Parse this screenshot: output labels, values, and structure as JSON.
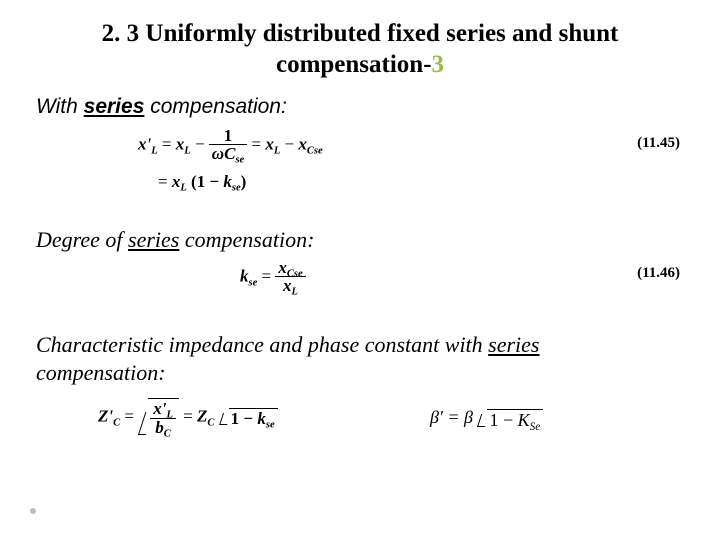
{
  "title": {
    "prefix": "2. 3 Uniformly distributed fixed series and shunt compensation-",
    "accent": "3"
  },
  "intro": {
    "prefix": "With ",
    "emph": "series",
    "space": " ",
    "suffix": "compensation:"
  },
  "eq1145": {
    "xLp": "x'",
    "Lsub": "L",
    "eq1": " = ",
    "xL": "x",
    "minus": " − ",
    "one": "1",
    "omega": "ω",
    "C": "C",
    "se": "se",
    "eq2": " = ",
    "xL2": "x",
    "xCse": "x",
    "Cse": "Cse",
    "row2a": "= ",
    "row2b": "x",
    "row2c": "(1 − ",
    "k": "k",
    "row2d": ")",
    "num": "(11.45)"
  },
  "sub1": {
    "prefix": "Degree of ",
    "emph": "series",
    "space": " ",
    "suffix": "compensation:"
  },
  "eq1146": {
    "k": "k",
    "se": "se",
    "eq": " = ",
    "xCse": "x",
    "Cse": "Cse",
    "xL": "x",
    "L": "L",
    "num": "(11.46)"
  },
  "sub2": {
    "line1a": "Characteristic impedance and phase constant with ",
    "emph": "series",
    "line2": "compensation:"
  },
  "eqpair": {
    "Zcp": "Z'",
    "Csub": "C",
    "eq": " = ",
    "xLp": "x'",
    "Lsub": "L",
    "bC": "b",
    "eq2": " = ",
    "Zc": "Z",
    "rad1a": "1 − ",
    "k": "k",
    "se": "se",
    "beta": "β' = β",
    "K": "K",
    "Se": "Se"
  }
}
